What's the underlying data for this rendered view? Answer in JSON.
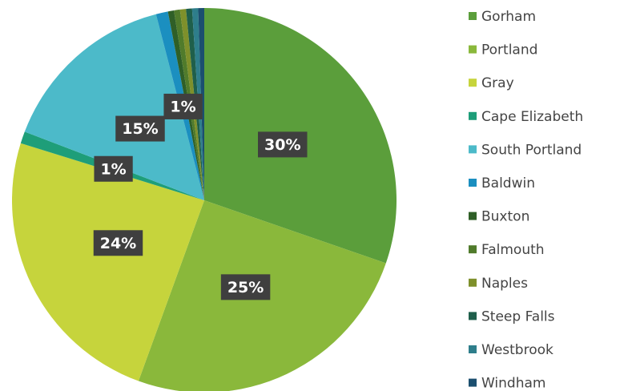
{
  "chart_data": {
    "type": "pie",
    "categories": [
      "Gorham",
      "Portland",
      "Gray",
      "Cape Elizabeth",
      "South Portland",
      "Baldwin",
      "Buxton",
      "Falmouth",
      "Naples",
      "Steep Falls",
      "Westbrook",
      "Windham"
    ],
    "values": [
      30,
      25,
      24,
      1,
      15,
      1,
      0.5,
      0.5,
      0.5,
      0.5,
      0.5,
      0.5
    ],
    "value_labels": [
      "30%",
      "25%",
      "24%",
      "1%",
      "15%",
      "1%",
      null,
      null,
      null,
      null,
      null,
      null
    ],
    "colors": [
      "#5b9e3b",
      "#8ab83b",
      "#c6d43c",
      "#1e9e79",
      "#4cbac9",
      "#1b8fc0",
      "#2f5f27",
      "#507b2b",
      "#7e902b",
      "#1f5f4b",
      "#2e7e8b",
      "#1b4f6f"
    ],
    "legend": "right"
  }
}
